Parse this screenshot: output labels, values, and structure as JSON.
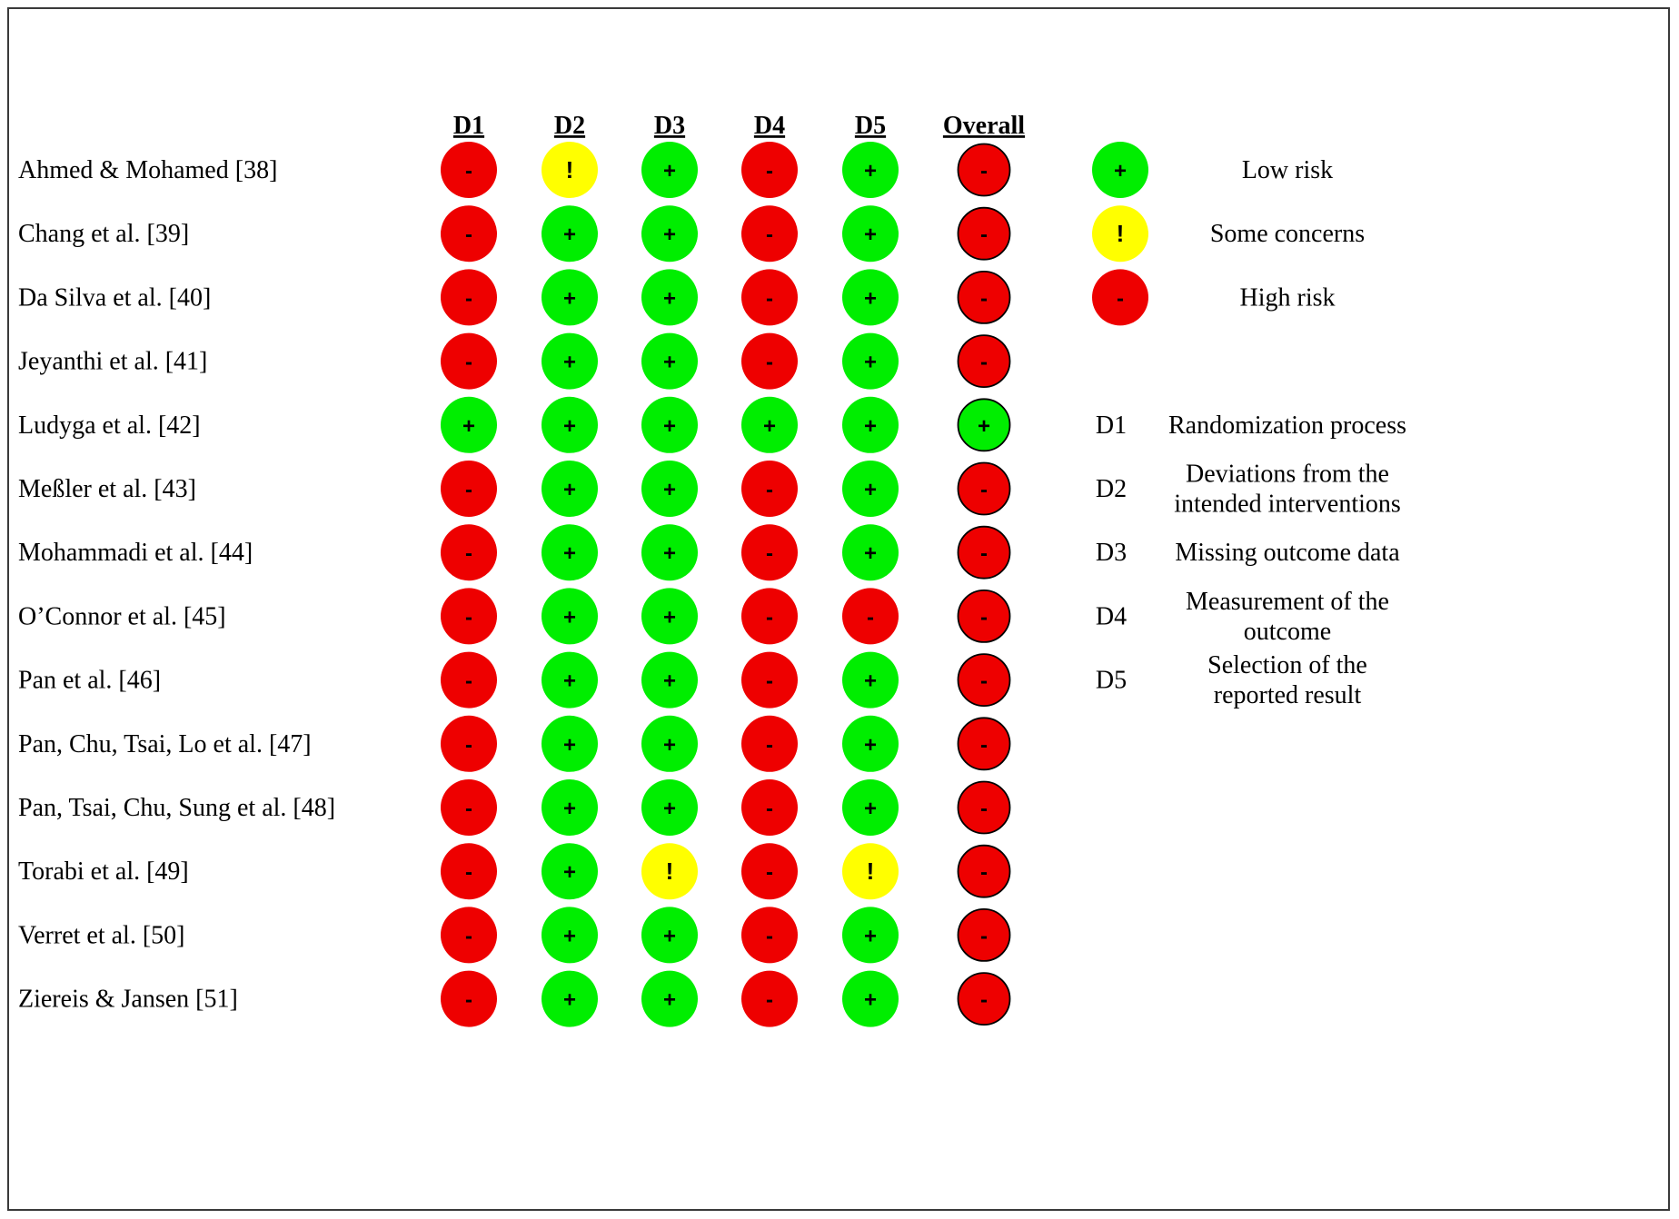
{
  "chart_data": {
    "type": "table",
    "columns": [
      "D1",
      "D2",
      "D3",
      "D4",
      "D5",
      "Overall"
    ],
    "studies": [
      {
        "name": "Ahmed & Mohamed [38]",
        "ratings": [
          "high",
          "some",
          "low",
          "high",
          "low",
          "high"
        ]
      },
      {
        "name": "Chang et al. [39]",
        "ratings": [
          "high",
          "low",
          "low",
          "high",
          "low",
          "high"
        ]
      },
      {
        "name": "Da Silva et al. [40]",
        "ratings": [
          "high",
          "low",
          "low",
          "high",
          "low",
          "high"
        ]
      },
      {
        "name": "Jeyanthi et al. [41]",
        "ratings": [
          "high",
          "low",
          "low",
          "high",
          "low",
          "high"
        ]
      },
      {
        "name": "Ludyga et al. [42]",
        "ratings": [
          "low",
          "low",
          "low",
          "low",
          "low",
          "low"
        ]
      },
      {
        "name": "Meßler et al. [43]",
        "ratings": [
          "high",
          "low",
          "low",
          "high",
          "low",
          "high"
        ]
      },
      {
        "name": "Mohammadi et al. [44]",
        "ratings": [
          "high",
          "low",
          "low",
          "high",
          "low",
          "high"
        ]
      },
      {
        "name": "O’Connor et al. [45]",
        "ratings": [
          "high",
          "low",
          "low",
          "high",
          "high",
          "high"
        ]
      },
      {
        "name": "Pan et al. [46]",
        "ratings": [
          "high",
          "low",
          "low",
          "high",
          "low",
          "high"
        ]
      },
      {
        "name": "Pan, Chu, Tsai, Lo et al. [47]",
        "ratings": [
          "high",
          "low",
          "low",
          "high",
          "low",
          "high"
        ]
      },
      {
        "name": "Pan, Tsai, Chu, Sung et al. [48]",
        "ratings": [
          "high",
          "low",
          "low",
          "high",
          "low",
          "high"
        ]
      },
      {
        "name": "Torabi et al. [49]",
        "ratings": [
          "high",
          "low",
          "some",
          "high",
          "some",
          "high"
        ]
      },
      {
        "name": "Verret et al. [50]",
        "ratings": [
          "high",
          "low",
          "low",
          "high",
          "low",
          "high"
        ]
      },
      {
        "name": "Ziereis & Jansen [51]",
        "ratings": [
          "high",
          "low",
          "low",
          "high",
          "low",
          "high"
        ]
      }
    ],
    "rating_levels": {
      "low": {
        "symbol": "+",
        "label": "Low risk",
        "color": "#00ee00"
      },
      "some": {
        "symbol": "!",
        "label": "Some concerns",
        "color": "#ffff00"
      },
      "high": {
        "symbol": "-",
        "label": "High risk",
        "color": "#ee0000"
      }
    },
    "legend_order": [
      "low",
      "some",
      "high"
    ],
    "domains": [
      {
        "code": "D1",
        "lines": [
          "Randomization process"
        ]
      },
      {
        "code": "D2",
        "lines": [
          "Deviations from the",
          "intended interventions"
        ]
      },
      {
        "code": "D3",
        "lines": [
          "Missing outcome data"
        ]
      },
      {
        "code": "D4",
        "lines": [
          "Measurement of the",
          "outcome"
        ]
      },
      {
        "code": "D5",
        "lines": [
          "Selection of the",
          "reported result"
        ]
      }
    ]
  }
}
